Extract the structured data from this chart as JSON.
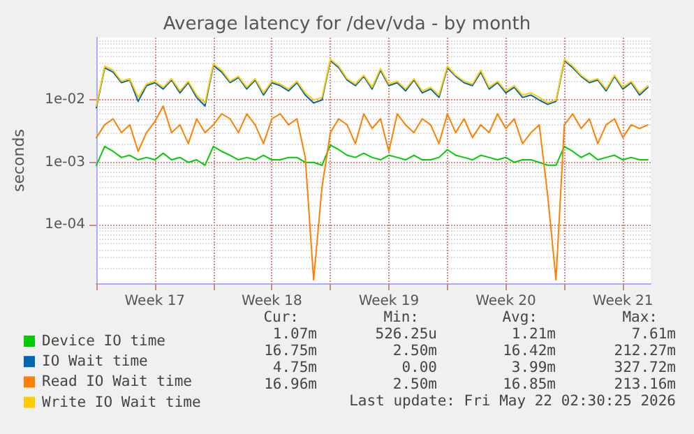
{
  "chart_data": {
    "type": "line",
    "title": "Average latency for /dev/vda - by month",
    "ylabel": "seconds",
    "log": "y",
    "grid": true,
    "legend": "bottom",
    "marker": "none",
    "line_style": "solid",
    "xlim": [
      "2026-04-20T00:00",
      "2026-05-23T04:00"
    ],
    "xticks": [
      {
        "value": "2026-04-20T00:00",
        "label": null
      },
      {
        "value": "2026-04-23T12:00",
        "label": "Week 17"
      },
      {
        "value": "2026-04-27T00:00",
        "label": null
      },
      {
        "value": "2026-04-30T12:00",
        "label": "Week 18"
      },
      {
        "value": "2026-05-04T00:00",
        "label": null
      },
      {
        "value": "2026-05-07T12:00",
        "label": "Week 19"
      },
      {
        "value": "2026-05-11T00:00",
        "label": null
      },
      {
        "value": "2026-05-14T12:00",
        "label": "Week 20"
      },
      {
        "value": "2026-05-18T00:00",
        "label": null
      },
      {
        "value": "2026-05-21T12:00",
        "label": "Week 21"
      }
    ],
    "ylim": [
      1.15e-05,
      0.1
    ],
    "yticks": [
      {
        "value": 0.0001,
        "label": "1e-04"
      },
      {
        "value": 0.001,
        "label": "1e-03"
      },
      {
        "value": 0.01,
        "label": "1e-02"
      }
    ],
    "x": [
      "2026-04-20T00:00",
      "2026-04-20T12:00",
      "2026-04-21T00:00",
      "2026-04-21T12:00",
      "2026-04-22T00:00",
      "2026-04-22T12:00",
      "2026-04-23T00:00",
      "2026-04-23T12:00",
      "2026-04-24T00:00",
      "2026-04-24T12:00",
      "2026-04-25T00:00",
      "2026-04-25T12:00",
      "2026-04-26T00:00",
      "2026-04-26T12:00",
      "2026-04-27T00:00",
      "2026-04-27T12:00",
      "2026-04-28T00:00",
      "2026-04-28T12:00",
      "2026-04-29T00:00",
      "2026-04-29T12:00",
      "2026-04-30T00:00",
      "2026-04-30T12:00",
      "2026-05-01T00:00",
      "2026-05-01T12:00",
      "2026-05-02T00:00",
      "2026-05-02T12:00",
      "2026-05-03T00:00",
      "2026-05-03T12:00",
      "2026-05-04T00:00",
      "2026-05-04T12:00",
      "2026-05-05T00:00",
      "2026-05-05T12:00",
      "2026-05-06T00:00",
      "2026-05-06T12:00",
      "2026-05-07T00:00",
      "2026-05-07T12:00",
      "2026-05-08T00:00",
      "2026-05-08T12:00",
      "2026-05-09T00:00",
      "2026-05-09T12:00",
      "2026-05-10T00:00",
      "2026-05-10T12:00",
      "2026-05-11T00:00",
      "2026-05-11T12:00",
      "2026-05-12T00:00",
      "2026-05-12T12:00",
      "2026-05-13T00:00",
      "2026-05-13T12:00",
      "2026-05-14T00:00",
      "2026-05-14T12:00",
      "2026-05-15T00:00",
      "2026-05-15T12:00",
      "2026-05-16T00:00",
      "2026-05-16T12:00",
      "2026-05-17T00:00",
      "2026-05-17T12:00",
      "2026-05-18T00:00",
      "2026-05-18T12:00",
      "2026-05-19T00:00",
      "2026-05-19T12:00",
      "2026-05-20T00:00",
      "2026-05-20T12:00",
      "2026-05-21T00:00",
      "2026-05-21T12:00",
      "2026-05-22T00:00",
      "2026-05-22T12:00",
      "2026-05-23T00:00"
    ],
    "series": [
      {
        "name": "Device IO time",
        "color": "#00cc00",
        "values": [
          0.0009,
          0.0018,
          0.0015,
          0.0012,
          0.0013,
          0.0011,
          0.0012,
          0.0011,
          0.0014,
          0.0011,
          0.0012,
          0.001,
          0.0011,
          0.0009,
          0.0018,
          0.0015,
          0.0013,
          0.0011,
          0.0012,
          0.0011,
          0.0013,
          0.0011,
          0.0011,
          0.0012,
          0.0012,
          0.001,
          0.001,
          0.0009,
          0.0019,
          0.0016,
          0.0013,
          0.0012,
          0.0014,
          0.0012,
          0.0011,
          0.0013,
          0.0012,
          0.0011,
          0.0013,
          0.0011,
          0.0011,
          0.0012,
          0.0016,
          0.0013,
          0.0012,
          0.0011,
          0.0013,
          0.0012,
          0.0011,
          0.0012,
          0.001,
          0.0011,
          0.0011,
          0.001,
          0.0009,
          0.0009,
          0.0018,
          0.0015,
          0.0012,
          0.0014,
          0.0011,
          0.0012,
          0.0013,
          0.0011,
          0.0012,
          0.0011,
          0.0011
        ]
      },
      {
        "name": "IO Wait time",
        "color": "#0066b3",
        "values": [
          0.0075,
          0.033,
          0.028,
          0.019,
          0.021,
          0.0095,
          0.017,
          0.019,
          0.015,
          0.021,
          0.013,
          0.019,
          0.011,
          0.008,
          0.036,
          0.028,
          0.019,
          0.023,
          0.015,
          0.021,
          0.012,
          0.019,
          0.017,
          0.014,
          0.019,
          0.012,
          0.009,
          0.01,
          0.043,
          0.033,
          0.021,
          0.017,
          0.024,
          0.015,
          0.03,
          0.017,
          0.019,
          0.014,
          0.021,
          0.013,
          0.015,
          0.011,
          0.033,
          0.024,
          0.019,
          0.017,
          0.028,
          0.015,
          0.019,
          0.013,
          0.016,
          0.011,
          0.012,
          0.01,
          0.0085,
          0.0095,
          0.043,
          0.033,
          0.024,
          0.019,
          0.021,
          0.014,
          0.024,
          0.015,
          0.019,
          0.012,
          0.016
        ]
      },
      {
        "name": "Read IO Wait time",
        "color": "#ff8000",
        "values": [
          0.0025,
          0.004,
          0.005,
          0.003,
          0.004,
          0.0015,
          0.003,
          0.0045,
          0.008,
          0.003,
          0.004,
          0.002,
          0.005,
          0.003,
          0.004,
          0.006,
          0.005,
          0.003,
          0.006,
          0.004,
          0.002,
          0.005,
          0.006,
          0.004,
          0.005,
          0.0012,
          1.3e-05,
          0.0004,
          0.003,
          0.005,
          0.004,
          0.002,
          0.006,
          0.0035,
          0.005,
          0.0015,
          0.006,
          0.004,
          0.003,
          0.005,
          0.004,
          0.002,
          0.006,
          0.003,
          0.005,
          0.0025,
          0.004,
          0.003,
          0.006,
          0.0035,
          0.005,
          0.002,
          0.003,
          0.004,
          0.0003,
          1.3e-05,
          0.004,
          0.006,
          0.0035,
          0.005,
          0.002,
          0.004,
          0.005,
          0.0025,
          0.004,
          0.0035,
          0.004
        ]
      },
      {
        "name": "Write IO Wait time",
        "color": "#ffcc00",
        "values": [
          0.008,
          0.035,
          0.03,
          0.02,
          0.022,
          0.011,
          0.018,
          0.02,
          0.016,
          0.022,
          0.014,
          0.02,
          0.012,
          0.009,
          0.038,
          0.03,
          0.02,
          0.024,
          0.016,
          0.022,
          0.013,
          0.02,
          0.018,
          0.015,
          0.02,
          0.013,
          0.01,
          0.011,
          0.045,
          0.035,
          0.022,
          0.018,
          0.025,
          0.016,
          0.032,
          0.018,
          0.02,
          0.015,
          0.022,
          0.014,
          0.016,
          0.012,
          0.035,
          0.025,
          0.02,
          0.018,
          0.03,
          0.016,
          0.02,
          0.014,
          0.017,
          0.012,
          0.013,
          0.011,
          0.009,
          0.01,
          0.045,
          0.035,
          0.025,
          0.02,
          0.022,
          0.015,
          0.025,
          0.016,
          0.02,
          0.013,
          0.017
        ]
      }
    ],
    "annotations": [
      "Cur:",
      "Min:",
      "Avg:",
      "Max:",
      "1.07m",
      "526.25u",
      "1.21m",
      "7.61m",
      "16.75m",
      "2.50m",
      "16.42m",
      "212.27m",
      "4.75m",
      "0.00",
      "3.99m",
      "327.72m",
      "16.96m",
      "2.50m",
      "16.85m",
      "213.16m",
      "Last update: Fri May 22 02:30:25 2026"
    ]
  }
}
